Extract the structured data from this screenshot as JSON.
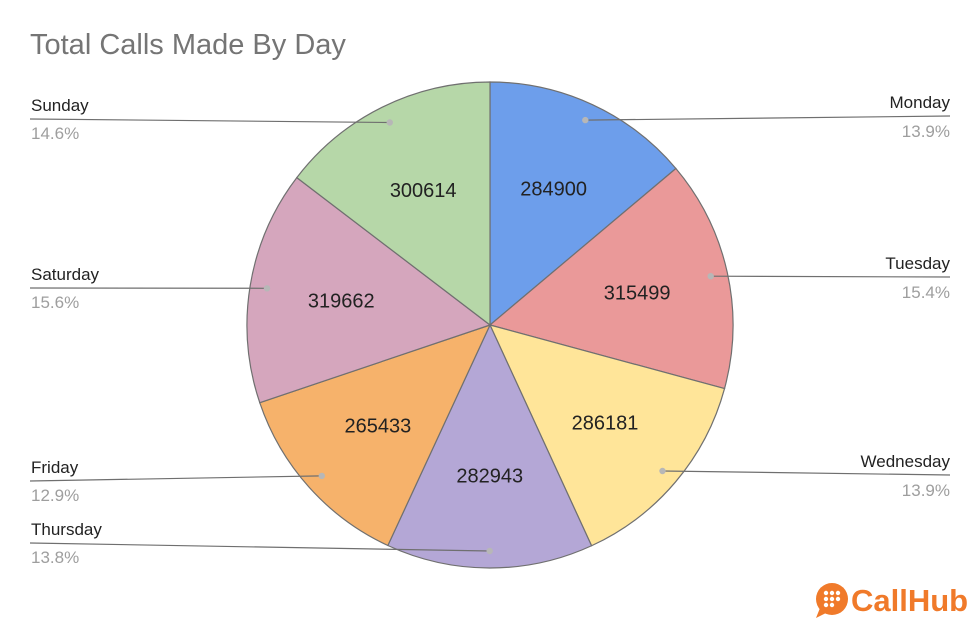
{
  "chart_data": {
    "type": "pie",
    "title": "Total Calls Made By Day",
    "categories": [
      "Monday",
      "Tuesday",
      "Wednesday",
      "Thursday",
      "Friday",
      "Saturday",
      "Sunday"
    ],
    "values": [
      284900,
      315499,
      286181,
      282943,
      265433,
      319662,
      300614
    ],
    "percent_labels": [
      "13.9%",
      "15.4%",
      "13.9%",
      "13.8%",
      "12.9%",
      "15.6%",
      "14.6%"
    ],
    "value_labels": [
      "284900",
      "315499",
      "286181",
      "282943",
      "265433",
      "319662",
      "300614"
    ],
    "colors": [
      "#6d9eeb",
      "#ea9999",
      "#ffe599",
      "#b4a7d6",
      "#f6b26b",
      "#d5a6bd",
      "#b6d7a8"
    ],
    "start_angle": "12 o'clock",
    "direction": "clockwise"
  },
  "brand": {
    "name": "CallHub",
    "color": "#f07a2a"
  }
}
